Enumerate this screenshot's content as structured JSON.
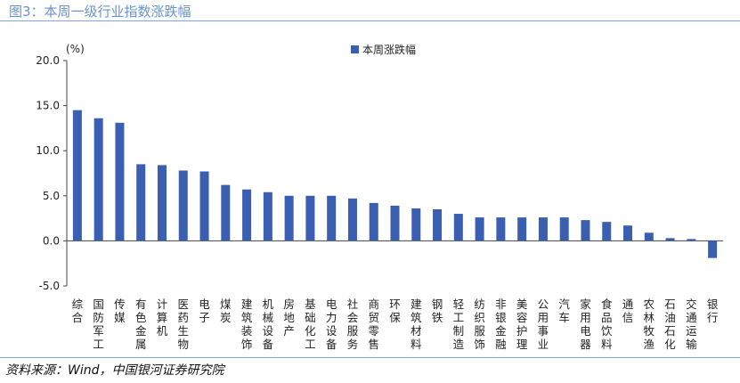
{
  "figure": {
    "title": "图3：本周一级行业指数涨跌幅",
    "source": "资料来源：Wind，中国银河证券研究院"
  },
  "colors": {
    "bar": "#3a5fb0",
    "accent_rule": "#7ea6d8",
    "title": "#6a93c6"
  },
  "chart_data": {
    "type": "bar",
    "title": "",
    "xlabel": "",
    "ylabel": "(%)",
    "ylim": [
      -5.0,
      20.0
    ],
    "yticks": [
      "20.0",
      "15.0",
      "10.0",
      "5.0",
      "0.0",
      "-5.0"
    ],
    "grid": false,
    "legend": {
      "position": "top-center",
      "entries": [
        "本周涨跌幅"
      ]
    },
    "categories": [
      "综合",
      "国防军工",
      "传媒",
      "有色金属",
      "计算机",
      "医药生物",
      "电子",
      "煤炭",
      "建筑装饰",
      "机械设备",
      "房地产",
      "基础化工",
      "电力设备",
      "社会服务",
      "商贸零售",
      "环保",
      "建筑材料",
      "钢铁",
      "轻工制造",
      "纺织服饰",
      "非银金融",
      "美容护理",
      "公用事业",
      "汽车",
      "家用电器",
      "食品饮料",
      "通信",
      "农林牧渔",
      "石油石化",
      "交通运输",
      "银行"
    ],
    "series": [
      {
        "name": "本周涨跌幅",
        "values": [
          14.5,
          13.6,
          13.1,
          8.5,
          8.4,
          7.8,
          7.7,
          6.2,
          5.7,
          5.4,
          5.0,
          5.0,
          5.0,
          4.7,
          4.2,
          3.9,
          3.6,
          3.5,
          3.0,
          2.6,
          2.6,
          2.6,
          2.6,
          2.6,
          2.3,
          2.1,
          1.7,
          0.9,
          0.3,
          0.2,
          -1.9
        ]
      }
    ]
  }
}
